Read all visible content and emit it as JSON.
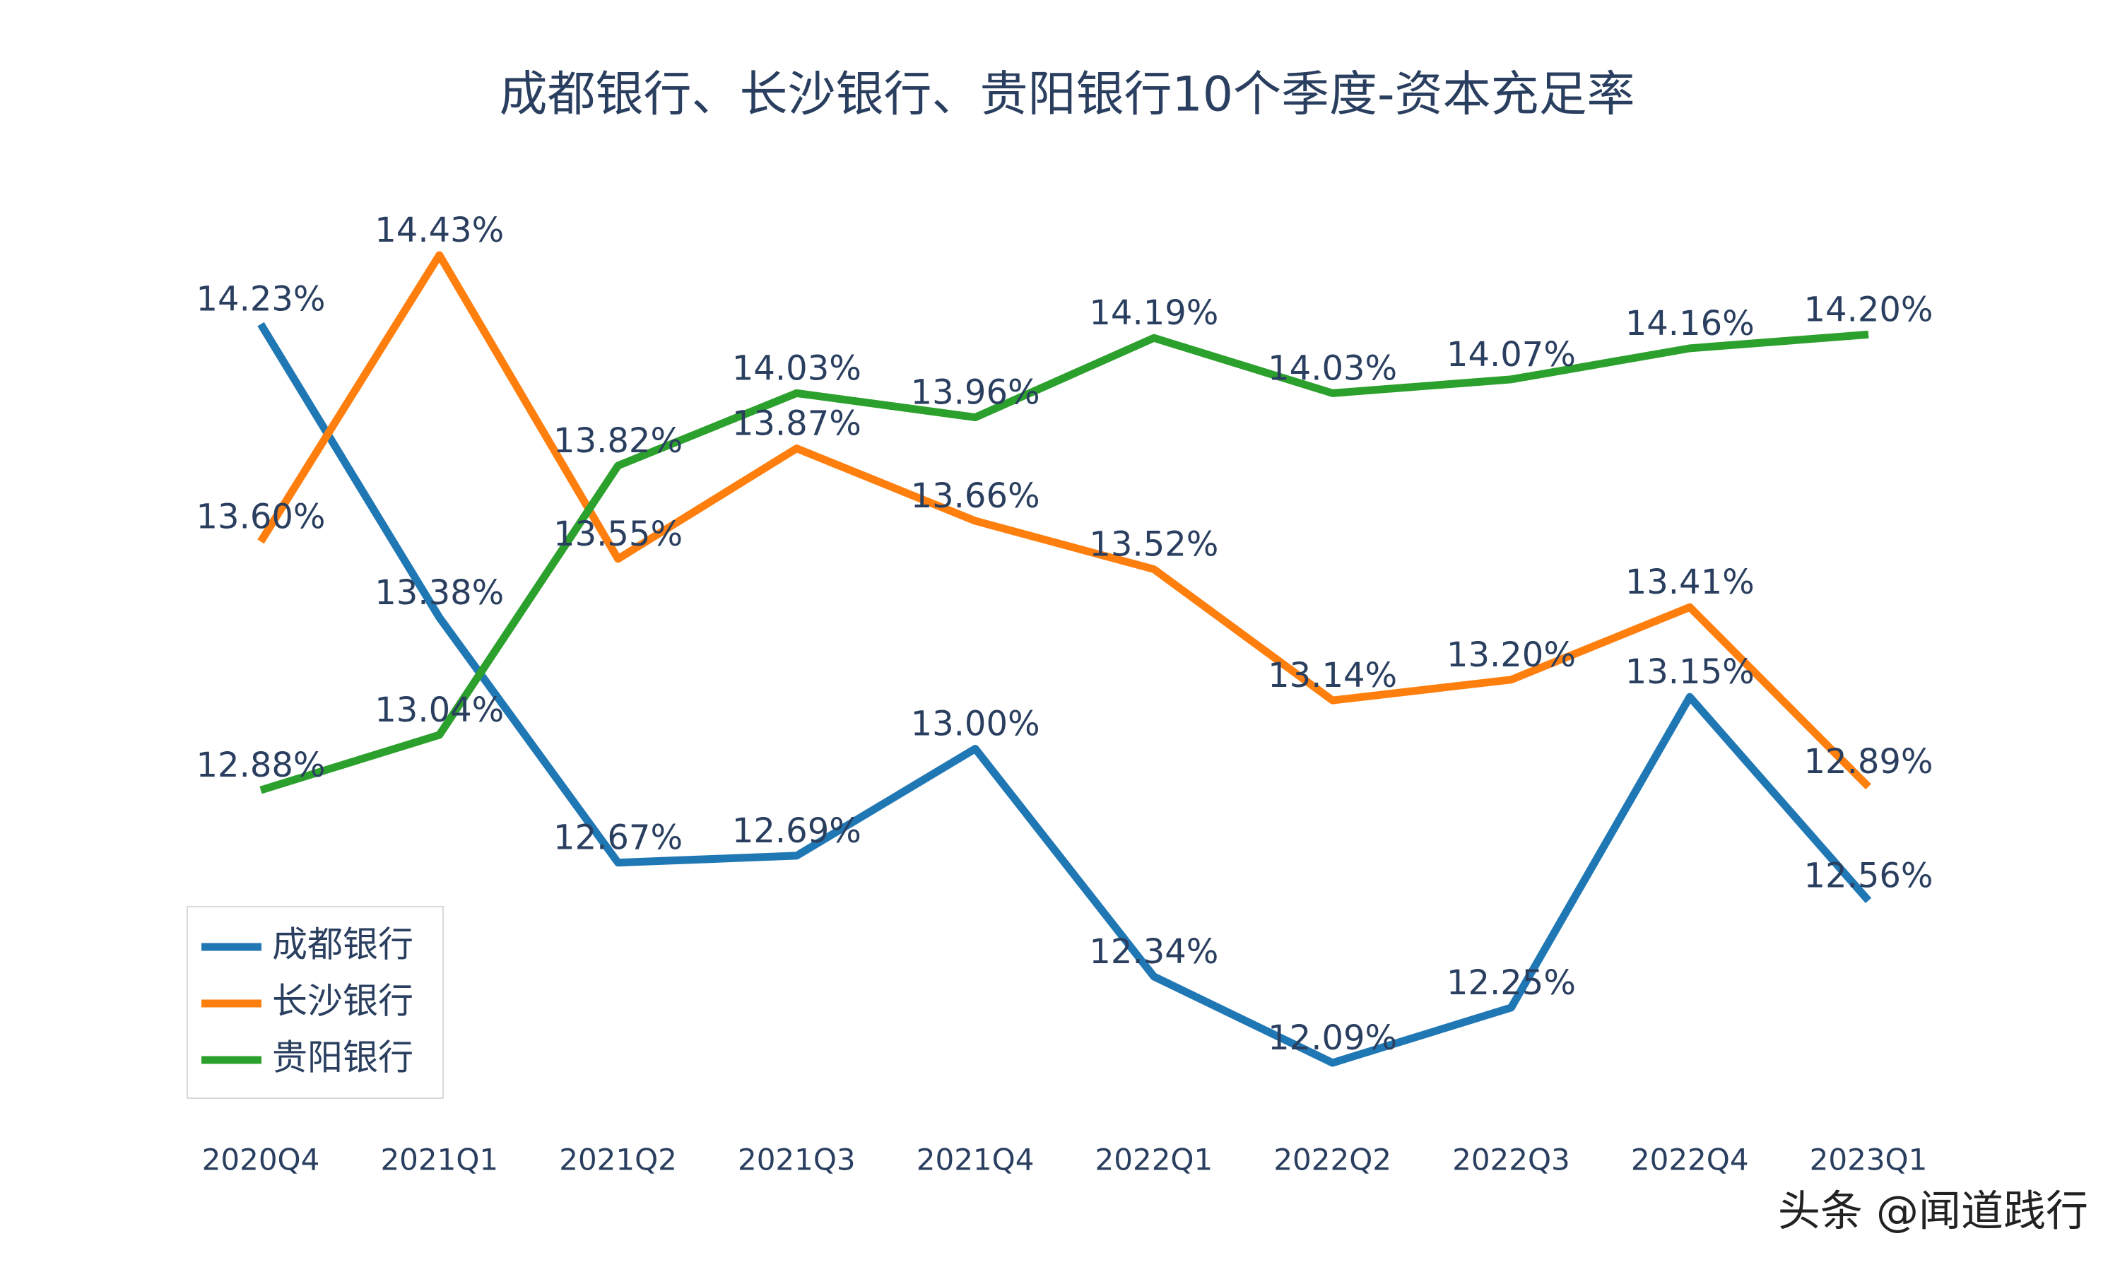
{
  "chart_data": {
    "type": "line",
    "title": "成都银行、长沙银行、贵阳银行10个季度-资本充足率",
    "categories": [
      "2020Q4",
      "2021Q1",
      "2021Q2",
      "2021Q3",
      "2021Q4",
      "2022Q1",
      "2022Q2",
      "2022Q3",
      "2022Q4",
      "2023Q1"
    ],
    "series": [
      {
        "name": "成都银行",
        "color": "#1f77b4",
        "values": [
          14.23,
          13.38,
          12.67,
          12.69,
          13.0,
          12.34,
          12.09,
          12.25,
          13.15,
          12.56
        ],
        "value_labels": [
          "14.23%",
          "13.38%",
          "12.67%",
          "12.69%",
          "13.00%",
          "12.34%",
          "12.09%",
          "12.25%",
          "13.15%",
          "12.56%"
        ]
      },
      {
        "name": "长沙银行",
        "color": "#ff7f0e",
        "values": [
          13.6,
          14.43,
          13.55,
          13.87,
          13.66,
          13.52,
          13.14,
          13.2,
          13.41,
          12.89
        ],
        "value_labels": [
          "13.60%",
          "14.43%",
          "13.55%",
          "13.87%",
          "13.66%",
          "13.52%",
          "13.14%",
          "13.20%",
          "13.41%",
          "12.89%"
        ]
      },
      {
        "name": "贵阳银行",
        "color": "#2ca02c",
        "values": [
          12.88,
          13.04,
          13.82,
          14.03,
          13.96,
          14.19,
          14.03,
          14.07,
          14.16,
          14.2
        ],
        "value_labels": [
          "12.88%",
          "13.04%",
          "13.82%",
          "14.03%",
          "13.96%",
          "14.19%",
          "14.03%",
          "14.07%",
          "14.16%",
          "14.20%"
        ]
      }
    ],
    "legend": "bottom-left",
    "watermark": "头条 @闻道践行"
  }
}
